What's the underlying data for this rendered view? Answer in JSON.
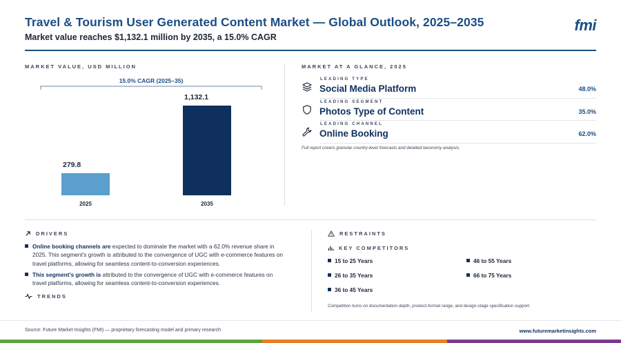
{
  "header": {
    "title": "Travel & Tourism User Generated Content Market — Global Outlook, 2025–2035",
    "subtitle": "Market value reaches $1,132.1 million by 2035, a 15.0% CAGR",
    "logo": "fmi"
  },
  "chart_section": {
    "label": "MARKET VALUE, USD MILLION"
  },
  "chart_data": {
    "type": "bar",
    "categories": [
      "2025",
      "2035"
    ],
    "values": [
      279.8,
      1132.1
    ],
    "value_labels": [
      "279.8",
      "1,132.1"
    ],
    "annotation": "15.0% CAGR (2025–35)",
    "ylim": [
      0,
      1132.1
    ],
    "colors": [
      "#5b9fcc",
      "#0f2f5c"
    ],
    "grid": false
  },
  "glance": {
    "label": "MARKET AT A GLANCE, 2025",
    "items": [
      {
        "kicker": "LEADING TYPE",
        "name": "Social Media Platform",
        "value": "48.0%",
        "icon": "layers-icon"
      },
      {
        "kicker": "LEADING SEGMENT",
        "name": "Photos Type of Content",
        "value": "35.0%",
        "icon": "shield-icon"
      },
      {
        "kicker": "LEADING CHANNEL",
        "name": "Online Booking",
        "value": "62.0%",
        "icon": "wrench-icon"
      }
    ],
    "note": "Full report covers granular country-level forecasts and detailed taxonomy analysis."
  },
  "drivers": {
    "label": "DRIVERS",
    "items": [
      {
        "lead": "Online booking channels are",
        "text": " expected to dominate the market with a 62.0% revenue share in 2025. This segment's growth is attributed to the convergence of UGC with e-commerce features on travel platforms, allowing for seamless content-to-conversion experiences."
      },
      {
        "lead": "This segment's growth is",
        "text": " attributed to the convergence of UGC with e-commerce features on travel platforms, allowing for seamless content-to-conversion experiences."
      }
    ]
  },
  "trends": {
    "label": "TRENDS"
  },
  "restraints": {
    "label": "RESTRAINTS"
  },
  "competitors": {
    "label": "KEY COMPETITORS",
    "items": [
      "15 to 25 Years",
      "46 to 55 Years",
      "26 to 35 Years",
      "66 to 75 Years",
      "36 to 45 Years"
    ],
    "note": "Competition turns on documentation depth, product-format range, and design-stage specification support."
  },
  "footer": {
    "source": "Source: Future Market Insights (FMI) — proprietary forecasting model and primary research",
    "url": "www.futuremarketinsights.com"
  },
  "colors": {
    "brand": "#1b4d85",
    "navy": "#0f2f5c",
    "bar_light": "#5b9fcc",
    "stripe_green": "#5aa63c",
    "stripe_orange": "#e67e22",
    "stripe_purple": "#7a3a8c"
  }
}
